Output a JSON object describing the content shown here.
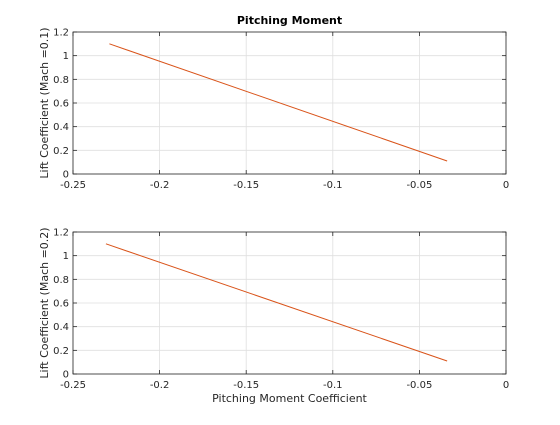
{
  "chart_data": [
    {
      "type": "line",
      "title": "Pitching Moment",
      "xlabel": "",
      "ylabel": "Lift Coefficient (Mach =0.1)",
      "xlim": [
        -0.25,
        0
      ],
      "ylim": [
        0,
        1.2
      ],
      "xticks": [
        -0.25,
        -0.2,
        -0.15,
        -0.1,
        -0.05,
        0
      ],
      "yticks": [
        0,
        0.2,
        0.4,
        0.6,
        0.8,
        1,
        1.2
      ],
      "xtick_labels": [
        "-0.25",
        "-0.2",
        "-0.15",
        "-0.1",
        "-0.05",
        "0"
      ],
      "ytick_labels": [
        "0",
        "0.2",
        "0.4",
        "0.6",
        "0.8",
        "1",
        "1.2"
      ],
      "grid": true,
      "series": [
        {
          "color": "#d95319",
          "x": [
            -0.229,
            -0.034
          ],
          "y": [
            1.1,
            0.11
          ]
        }
      ]
    },
    {
      "type": "line",
      "title": "",
      "xlabel": "Pitching Moment Coefficient",
      "ylabel": "Lift Coefficient (Mach =0.2)",
      "xlim": [
        -0.25,
        0
      ],
      "ylim": [
        0,
        1.2
      ],
      "xticks": [
        -0.25,
        -0.2,
        -0.15,
        -0.1,
        -0.05,
        0
      ],
      "yticks": [
        0,
        0.2,
        0.4,
        0.6,
        0.8,
        1,
        1.2
      ],
      "xtick_labels": [
        "-0.25",
        "-0.2",
        "-0.15",
        "-0.1",
        "-0.05",
        "0"
      ],
      "ytick_labels": [
        "0",
        "0.2",
        "0.4",
        "0.6",
        "0.8",
        "1",
        "1.2"
      ],
      "grid": true,
      "series": [
        {
          "color": "#d95319",
          "x": [
            -0.231,
            -0.034
          ],
          "y": [
            1.1,
            0.11
          ]
        }
      ]
    }
  ]
}
